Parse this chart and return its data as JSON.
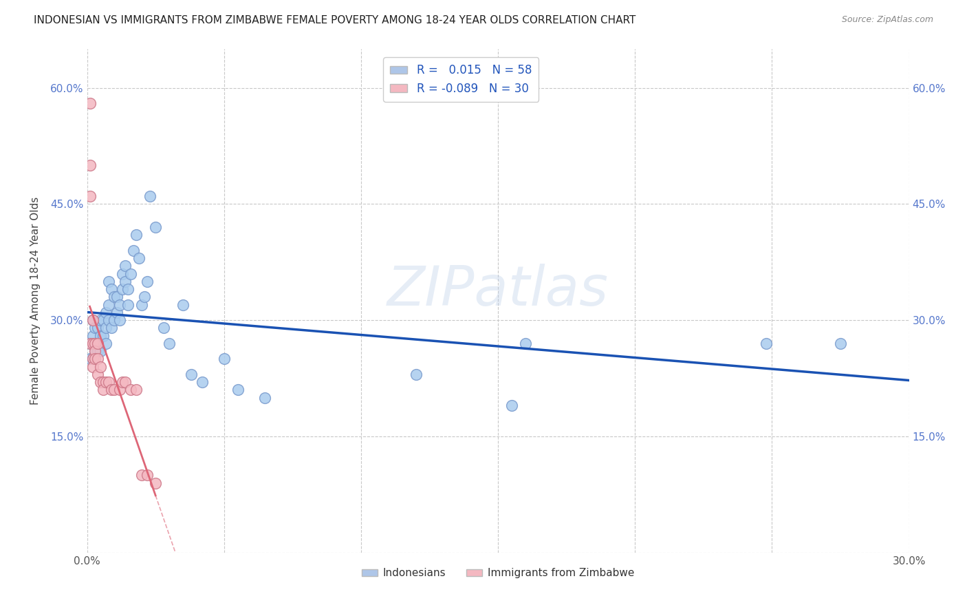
{
  "title": "INDONESIAN VS IMMIGRANTS FROM ZIMBABWE FEMALE POVERTY AMONG 18-24 YEAR OLDS CORRELATION CHART",
  "source": "Source: ZipAtlas.com",
  "ylabel": "Female Poverty Among 18-24 Year Olds",
  "xlim": [
    0.0,
    0.3
  ],
  "ylim": [
    0.0,
    0.65
  ],
  "xticks": [
    0.0,
    0.05,
    0.1,
    0.15,
    0.2,
    0.25,
    0.3
  ],
  "xtick_labels": [
    "0.0%",
    "",
    "",
    "",
    "",
    "",
    "30.0%"
  ],
  "yticks": [
    0.0,
    0.15,
    0.3,
    0.45,
    0.6
  ],
  "ytick_labels_left": [
    "",
    "15.0%",
    "30.0%",
    "45.0%",
    "60.0%"
  ],
  "ytick_labels_right": [
    "",
    "15.0%",
    "30.0%",
    "45.0%",
    "60.0%"
  ],
  "grid_color": "#c8c8c8",
  "background_color": "#ffffff",
  "legend_color1": "#aec6e8",
  "legend_color2": "#f4b8c1",
  "scatter1_color": "#aaccee",
  "scatter1_edge": "#7799cc",
  "scatter2_color": "#f4b8c1",
  "scatter2_edge": "#cc7788",
  "line1_color": "#1a52b3",
  "line2_color": "#dd6677",
  "watermark": "ZIPatlas",
  "indonesian_x": [
    0.001,
    0.001,
    0.002,
    0.002,
    0.002,
    0.003,
    0.003,
    0.003,
    0.004,
    0.004,
    0.004,
    0.005,
    0.005,
    0.005,
    0.006,
    0.006,
    0.007,
    0.007,
    0.007,
    0.008,
    0.008,
    0.008,
    0.009,
    0.009,
    0.01,
    0.01,
    0.011,
    0.011,
    0.012,
    0.012,
    0.013,
    0.013,
    0.014,
    0.014,
    0.015,
    0.015,
    0.016,
    0.017,
    0.018,
    0.019,
    0.02,
    0.021,
    0.022,
    0.023,
    0.025,
    0.028,
    0.03,
    0.035,
    0.038,
    0.042,
    0.05,
    0.055,
    0.065,
    0.12,
    0.155,
    0.16,
    0.248,
    0.275
  ],
  "indonesian_y": [
    0.27,
    0.25,
    0.3,
    0.28,
    0.25,
    0.29,
    0.27,
    0.26,
    0.29,
    0.27,
    0.26,
    0.3,
    0.28,
    0.26,
    0.3,
    0.28,
    0.31,
    0.29,
    0.27,
    0.35,
    0.32,
    0.3,
    0.34,
    0.29,
    0.33,
    0.3,
    0.33,
    0.31,
    0.32,
    0.3,
    0.36,
    0.34,
    0.37,
    0.35,
    0.34,
    0.32,
    0.36,
    0.39,
    0.41,
    0.38,
    0.32,
    0.33,
    0.35,
    0.46,
    0.42,
    0.29,
    0.27,
    0.32,
    0.23,
    0.22,
    0.25,
    0.21,
    0.2,
    0.23,
    0.19,
    0.27,
    0.27,
    0.27
  ],
  "zimbabwe_x": [
    0.001,
    0.001,
    0.001,
    0.001,
    0.002,
    0.002,
    0.002,
    0.002,
    0.003,
    0.003,
    0.003,
    0.004,
    0.004,
    0.004,
    0.005,
    0.005,
    0.006,
    0.006,
    0.007,
    0.008,
    0.009,
    0.01,
    0.012,
    0.013,
    0.014,
    0.016,
    0.018,
    0.02,
    0.022,
    0.025
  ],
  "zimbabwe_y": [
    0.58,
    0.5,
    0.46,
    0.27,
    0.3,
    0.27,
    0.25,
    0.24,
    0.27,
    0.26,
    0.25,
    0.27,
    0.25,
    0.23,
    0.24,
    0.22,
    0.22,
    0.21,
    0.22,
    0.22,
    0.21,
    0.21,
    0.21,
    0.22,
    0.22,
    0.21,
    0.21,
    0.1,
    0.1,
    0.09
  ],
  "zimb_line_xmax": 0.025
}
